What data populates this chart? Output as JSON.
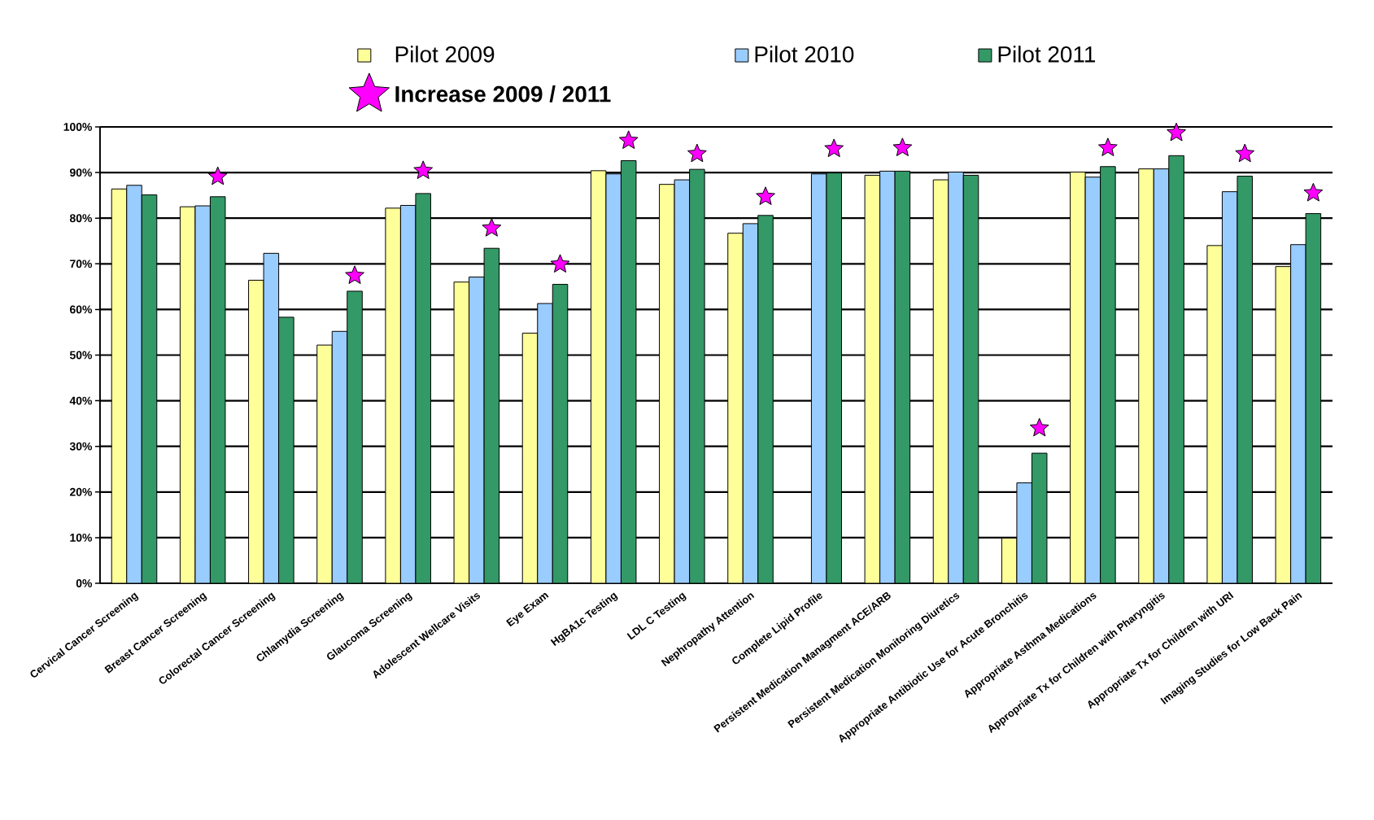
{
  "chart_data": {
    "type": "bar",
    "categories": [
      "Cervical Cancer Screening",
      "Breast Cancer Screening",
      "Colorectal Cancer Screening",
      "Chlamydia Screening",
      "Glaucoma Screening",
      "Adolescent Wellcare Visits",
      "Eye Exam",
      "HgBA1c Testing",
      "LDL C Testing",
      "Nephropathy Attention",
      "Complete Lipid Profile",
      "Persistent Medication Managment ACE/ARB",
      "Persistent Medication Monitoring Diuretics",
      "Appropriate Antibiotic Use for Acute Bronchitis",
      "Appropriate Asthma Medications",
      "Appropriate Tx for Children with Pharyngitis",
      "Appropriate Tx for Children with URI",
      "Imaging Studies for Low Back Pain"
    ],
    "series": [
      {
        "name": "Pilot 2009",
        "color": "#ffff99",
        "values": [
          86.4,
          82.5,
          66.4,
          52.2,
          82.2,
          66.0,
          54.8,
          90.4,
          87.4,
          76.7,
          null,
          89.4,
          88.4,
          9.9,
          90.1,
          90.8,
          74.0,
          69.4
        ]
      },
      {
        "name": "Pilot 2010",
        "color": "#99ccff",
        "values": [
          87.2,
          82.7,
          72.3,
          55.2,
          82.8,
          67.1,
          61.3,
          89.7,
          88.4,
          78.8,
          89.7,
          90.3,
          90.1,
          22.0,
          89.0,
          90.8,
          85.8,
          74.2
        ]
      },
      {
        "name": "Pilot 2011",
        "color": "#339966",
        "values": [
          85.1,
          84.7,
          58.3,
          64.0,
          85.4,
          73.4,
          65.5,
          92.6,
          90.7,
          80.6,
          89.9,
          90.3,
          89.4,
          28.5,
          91.3,
          93.7,
          89.2,
          81.0
        ]
      },
      {
        "name": "Increase 2009 / 2011",
        "type": "scatter",
        "marker": "star",
        "color": "#ff00ff",
        "values": [
          null,
          89.1,
          null,
          67.4,
          90.4,
          77.8,
          69.9,
          97.0,
          94.1,
          84.7,
          95.2,
          95.4,
          null,
          34.0,
          95.4,
          98.7,
          94.1,
          85.5
        ]
      }
    ],
    "ylim": [
      0,
      100
    ],
    "yticks": [
      {
        "value": 0,
        "label": "0%"
      },
      {
        "value": 10,
        "label": "10%"
      },
      {
        "value": 20,
        "label": "20%"
      },
      {
        "value": 30,
        "label": "30%"
      },
      {
        "value": 40,
        "label": "40%"
      },
      {
        "value": 50,
        "label": "50%"
      },
      {
        "value": 60,
        "label": "60%"
      },
      {
        "value": 70,
        "label": "70%"
      },
      {
        "value": 80,
        "label": "80%"
      },
      {
        "value": 90,
        "label": "90%"
      },
      {
        "value": 100,
        "label": "100%"
      }
    ],
    "grid": "y",
    "legend": "top"
  }
}
